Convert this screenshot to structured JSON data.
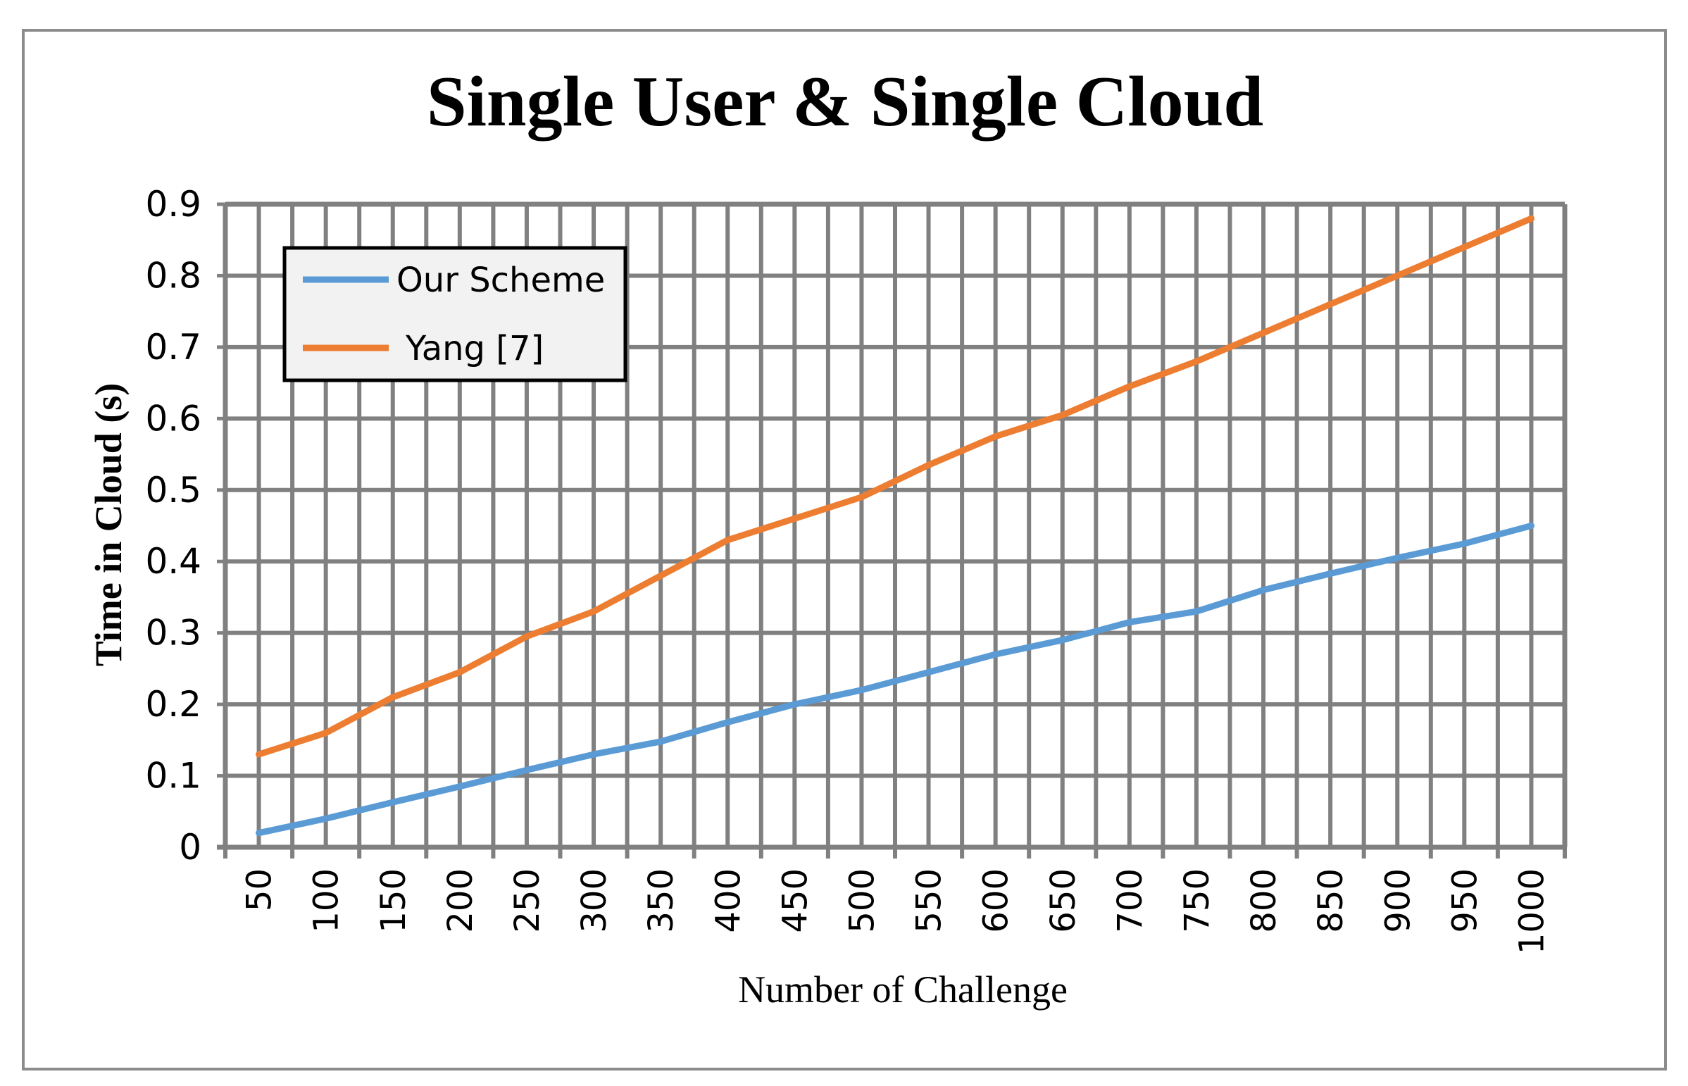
{
  "chart_data": {
    "type": "line",
    "title": "Single User & Single Cloud",
    "xlabel": "Number of Challenge",
    "ylabel": "Time in Cloud (s)",
    "ylim": [
      0,
      0.9
    ],
    "y_ticks": [
      "0",
      "0.1",
      "0.2",
      "0.3",
      "0.4",
      "0.5",
      "0.6",
      "0.7",
      "0.8",
      "0.9"
    ],
    "categories": [
      "50",
      "100",
      "150",
      "200",
      "250",
      "300",
      "350",
      "400",
      "450",
      "500",
      "550",
      "600",
      "650",
      "700",
      "750",
      "800",
      "850",
      "900",
      "950",
      "1000"
    ],
    "grid": true,
    "legend_position": "top-left",
    "series": [
      {
        "name": "Our Scheme",
        "color": "#5B9BD5",
        "values": [
          0.02,
          0.04,
          0.063,
          0.085,
          0.108,
          0.13,
          0.148,
          0.175,
          0.2,
          0.22,
          0.245,
          0.27,
          0.29,
          0.315,
          0.33,
          0.36,
          0.383,
          0.405,
          0.425,
          0.45
        ]
      },
      {
        "name": "Yang [7]",
        "color": "#ED7D31",
        "values": [
          0.13,
          0.16,
          0.21,
          0.245,
          0.295,
          0.33,
          0.38,
          0.43,
          0.46,
          0.49,
          0.535,
          0.575,
          0.605,
          0.645,
          0.68,
          0.72,
          0.76,
          0.8,
          0.84,
          0.88
        ]
      }
    ]
  }
}
